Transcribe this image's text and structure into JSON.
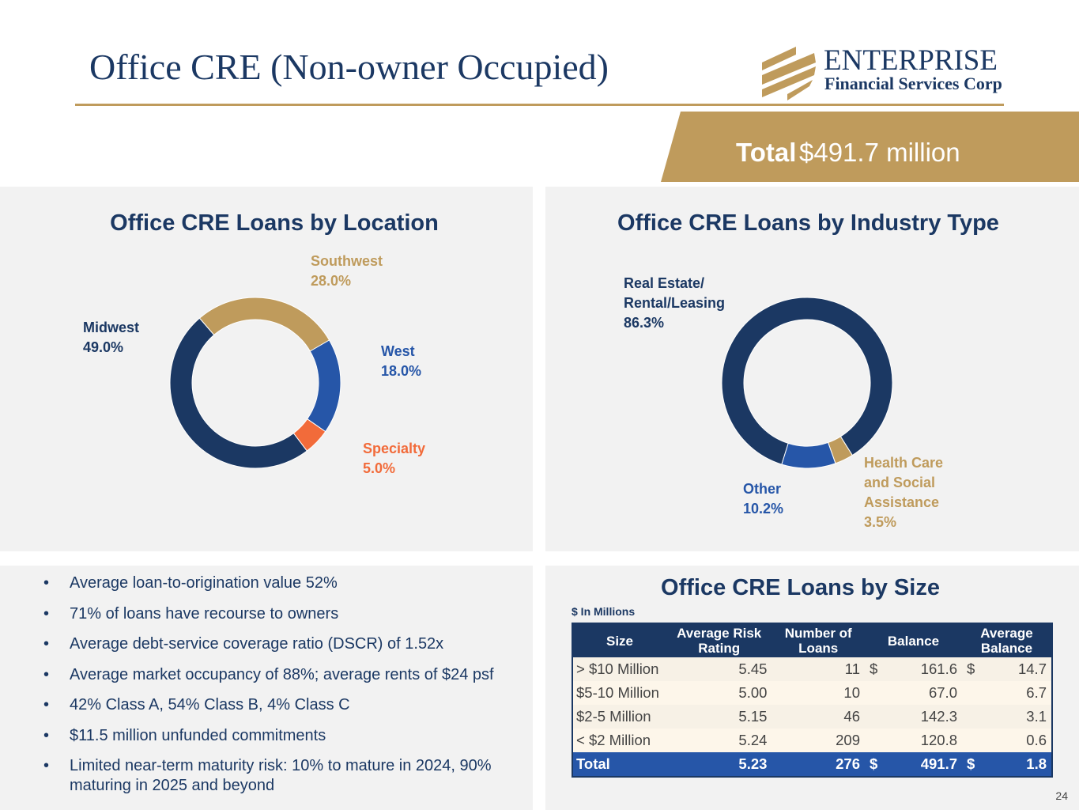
{
  "header": {
    "title": "Office CRE (Non-owner Occupied)",
    "logo_line1": "ENTERPRISE",
    "logo_line2": "Financial Services Corp"
  },
  "banner": {
    "label": "Total",
    "value": "$491.7 million"
  },
  "colors": {
    "navy": "#1b3863",
    "gold": "#bf9b5c",
    "blue": "#2656a8",
    "orange": "#f26b3a"
  },
  "chart_data": [
    {
      "type": "pie",
      "style": "donut",
      "title": "Office CRE Loans by Location",
      "slices": [
        {
          "name": "Southwest",
          "value": 28.0,
          "label": "28.0%",
          "color": "#bf9b5c"
        },
        {
          "name": "West",
          "value": 18.0,
          "label": "18.0%",
          "color": "#2656a8"
        },
        {
          "name": "Specialty",
          "value": 5.0,
          "label": "5.0%",
          "color": "#f26b3a"
        },
        {
          "name": "Midwest",
          "value": 49.0,
          "label": "49.0%",
          "color": "#1b3863"
        }
      ]
    },
    {
      "type": "pie",
      "style": "donut",
      "title": "Office CRE Loans by Industry Type",
      "slices": [
        {
          "name": "Real Estate/ Rental/Leasing",
          "value": 86.3,
          "label": "86.3%",
          "color": "#1b3863"
        },
        {
          "name": "Health Care and Social Assistance",
          "value": 3.5,
          "label": "3.5%",
          "color": "#bf9b5c"
        },
        {
          "name": "Other",
          "value": 10.2,
          "label": "10.2%",
          "color": "#2656a8"
        }
      ]
    }
  ],
  "bullets": [
    "Average loan-to-origination value 52%",
    "71% of loans have recourse to owners",
    "Average debt-service coverage ratio (DSCR) of 1.52x",
    "Average market occupancy of 88%; average rents of $24 psf",
    "42% Class A, 54% Class B, 4% Class C",
    "$11.5 million unfunded commitments",
    "Limited near-term maturity risk: 10% to mature in 2024, 90% maturing in 2025 and beyond"
  ],
  "size_table": {
    "title": "Office CRE Loans by Size",
    "unit_note": "$ In Millions",
    "columns": [
      "Size",
      "Average Risk Rating",
      "Number of Loans",
      "Balance",
      "Average Balance"
    ],
    "rows": [
      [
        "> $10 Million",
        "5.45",
        "11",
        "$",
        "161.6",
        "$",
        "14.7"
      ],
      [
        "$5-10 Million",
        "5.00",
        "10",
        "",
        "67.0",
        "",
        "6.7"
      ],
      [
        "$2-5 Million",
        "5.15",
        "46",
        "",
        "142.3",
        "",
        "3.1"
      ],
      [
        "< $2 Million",
        "5.24",
        "209",
        "",
        "120.8",
        "",
        "0.6"
      ]
    ],
    "total": [
      "Total",
      "5.23",
      "276",
      "$",
      "491.7",
      "$",
      "1.8"
    ]
  },
  "page_number": "24"
}
